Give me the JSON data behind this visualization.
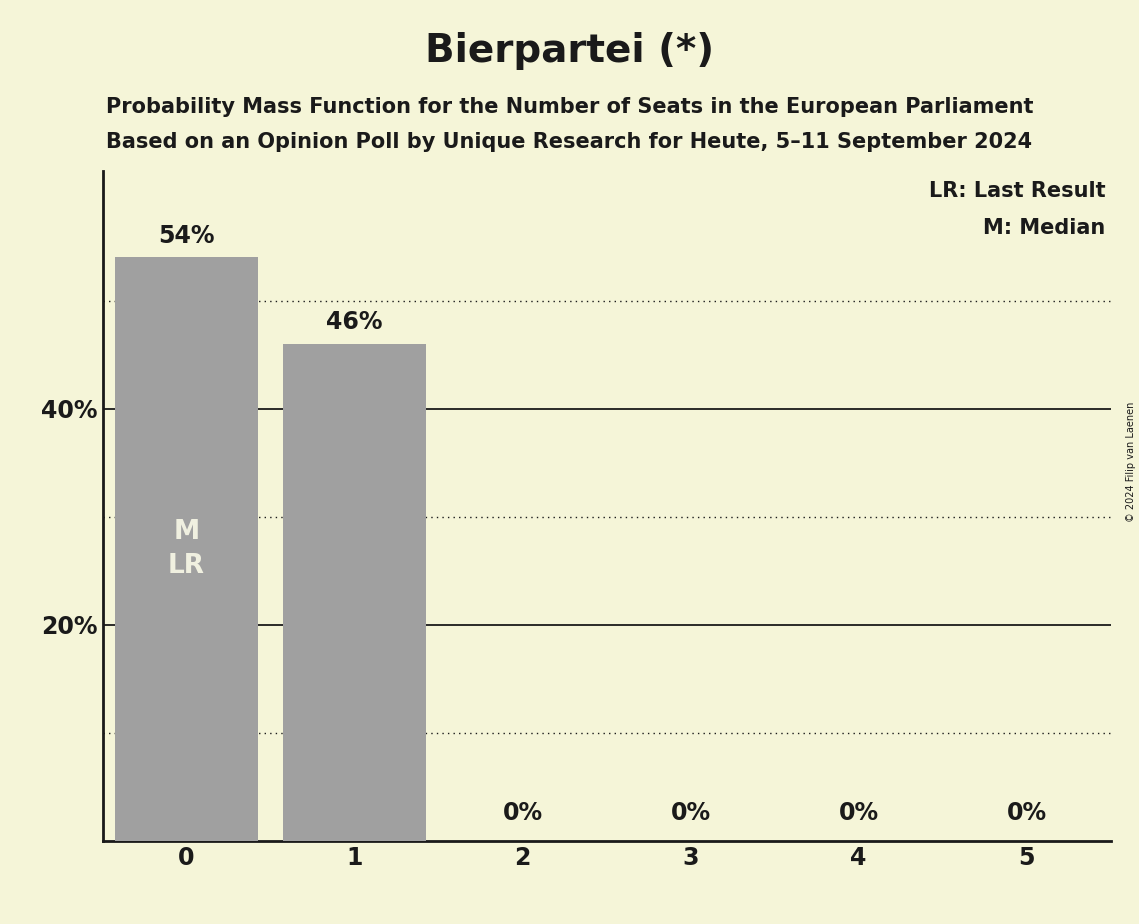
{
  "title": "Bierpartei (*)",
  "subtitle_line1": "Probability Mass Function for the Number of Seats in the European Parliament",
  "subtitle_line2": "Based on an Opinion Poll by Unique Research for Heute, 5–11 September 2024",
  "copyright": "© 2024 Filip van Laenen",
  "seats": [
    0,
    1,
    2,
    3,
    4,
    5
  ],
  "probabilities": [
    0.54,
    0.46,
    0.0,
    0.0,
    0.0,
    0.0
  ],
  "labels": [
    "54%",
    "46%",
    "0%",
    "0%",
    "0%",
    "0%"
  ],
  "bar_color": "#a0a0a0",
  "background_color": "#f5f5d8",
  "text_color": "#1a1a1a",
  "bar_label_color_inside": "#f0f0e0",
  "solid_lines": [
    0.2,
    0.4
  ],
  "dotted_lines": [
    0.1,
    0.3,
    0.5
  ],
  "legend_lr": "LR: Last Result",
  "legend_m": "M: Median",
  "title_fontsize": 28,
  "subtitle_fontsize": 15,
  "bar_width": 0.85,
  "label_fontsize": 17,
  "tick_fontsize": 17,
  "inside_label_fontsize": 19,
  "ylim_max": 0.62
}
